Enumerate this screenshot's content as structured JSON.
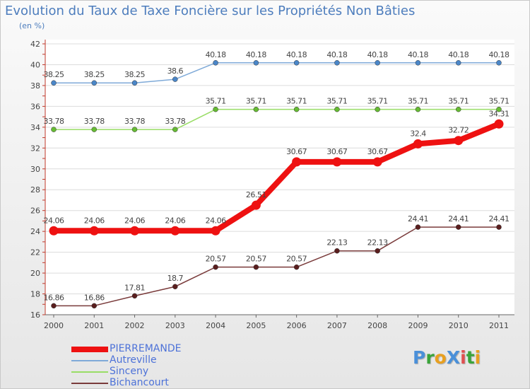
{
  "title": "Evolution du Taux de Taxe Foncière sur les Propriétés Non Bâties",
  "unit_label": "(en %)",
  "logo": {
    "text": "ProXiti",
    "letters": [
      {
        "ch": "P",
        "color": "#4a90d9"
      },
      {
        "ch": "r",
        "color": "#3aa43a"
      },
      {
        "ch": "o",
        "color": "#e8a020"
      },
      {
        "ch": "X",
        "color": "#4a90d9"
      },
      {
        "ch": "i",
        "color": "#e05050"
      },
      {
        "ch": "t",
        "color": "#3aa43a"
      },
      {
        "ch": "i",
        "color": "#e8a020"
      }
    ]
  },
  "chart_data": {
    "type": "line",
    "title": "Evolution du Taux de Taxe Foncière sur les Propriétés Non Bâties",
    "ylabel": "(en %)",
    "xlabel": "",
    "categories": [
      "2000",
      "2001",
      "2002",
      "2003",
      "2004",
      "2005",
      "2006",
      "2007",
      "2008",
      "2009",
      "2010",
      "2011"
    ],
    "ylim": [
      16,
      42
    ],
    "yticks": [
      16,
      18,
      20,
      22,
      24,
      26,
      28,
      30,
      32,
      34,
      36,
      38,
      40,
      42
    ],
    "grid": "horizontal",
    "legend_position": "bottom-left",
    "series": [
      {
        "name": "PIERREMANDE",
        "color": "#ee1111",
        "marker_color": "#ee1111",
        "bold": true,
        "values": [
          24.06,
          24.06,
          24.06,
          24.06,
          24.06,
          26.51,
          30.67,
          30.67,
          30.67,
          32.4,
          32.72,
          34.31
        ],
        "labels": [
          "24.06",
          "24.06",
          "24.06",
          "24.06",
          "24.06",
          "26.51",
          "30.67",
          "30.67",
          "30.67",
          "32.4",
          "32.72",
          "34.31"
        ]
      },
      {
        "name": "Autreville",
        "color": "#7faad8",
        "marker_color": "#4a86c8",
        "bold": false,
        "values": [
          38.25,
          38.25,
          38.25,
          38.6,
          40.18,
          40.18,
          40.18,
          40.18,
          40.18,
          40.18,
          40.18,
          40.18
        ],
        "labels": [
          "38.25",
          "38.25",
          "38.25",
          "38.6",
          "40.18",
          "40.18",
          "40.18",
          "40.18",
          "40.18",
          "40.18",
          "40.18",
          "40.18"
        ]
      },
      {
        "name": "Sinceny",
        "color": "#99dd66",
        "marker_color": "#66bb33",
        "bold": false,
        "values": [
          33.78,
          33.78,
          33.78,
          33.78,
          35.71,
          35.71,
          35.71,
          35.71,
          35.71,
          35.71,
          35.71,
          35.71
        ],
        "labels": [
          "33.78",
          "33.78",
          "33.78",
          "33.78",
          "35.71",
          "35.71",
          "35.71",
          "35.71",
          "35.71",
          "35.71",
          "35.71",
          "35.71"
        ]
      },
      {
        "name": "Bichancourt",
        "color": "#7a3b3b",
        "marker_color": "#5a1e1e",
        "bold": false,
        "values": [
          16.86,
          16.86,
          17.81,
          18.7,
          20.57,
          20.57,
          20.57,
          22.13,
          22.13,
          24.41,
          24.41,
          24.41
        ],
        "labels": [
          "16.86",
          "16.86",
          "17.81",
          "18.7",
          "20.57",
          "20.57",
          "20.57",
          "22.13",
          "22.13",
          "24.41",
          "24.41",
          "24.41"
        ]
      }
    ]
  }
}
